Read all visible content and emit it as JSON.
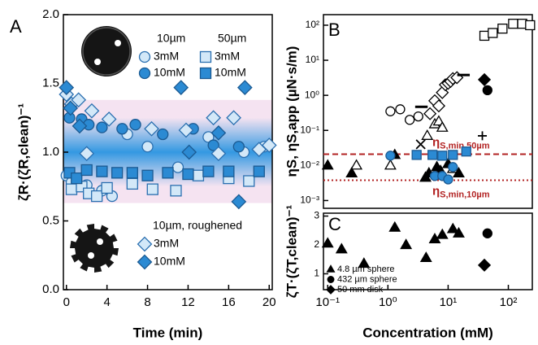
{
  "chart_data": [
    {
      "type": "scatter",
      "panel_label": "A",
      "xlabel": "Time (min)",
      "ylabel": "ζR·(ζR,clean)⁻¹",
      "xlim": [
        -0.3,
        20.3
      ],
      "xticks": [
        0,
        4,
        8,
        12,
        16,
        20
      ],
      "ylim": [
        0,
        2
      ],
      "yticks": [
        {
          "value": 0,
          "label": "0.0"
        },
        {
          "value": 0.5,
          "label": "0.5"
        },
        {
          "value": 1,
          "label": "1.0"
        },
        {
          "value": 1.5,
          "label": "1.5"
        },
        {
          "value": 2,
          "label": "2.0"
        }
      ],
      "bands": [
        {
          "range": [
            0.63,
            1.38
          ],
          "color": "#f5e3f1"
        },
        {
          "range": [
            0.75,
            1.25
          ],
          "color": "#1e90e0"
        }
      ],
      "series": [
        {
          "group": "10µm",
          "name": "3mM",
          "marker": "circle",
          "color": "#d3e8f8",
          "x": [
            0,
            0.5,
            2,
            3.5,
            4.5,
            6,
            8,
            11,
            14,
            17.5,
            19.5
          ],
          "values": [
            0.83,
            0.78,
            0.76,
            0.72,
            0.68,
            1.13,
            1.04,
            0.89,
            1.11,
            1.0,
            1.04
          ]
        },
        {
          "group": "10µm",
          "name": "10mM",
          "marker": "circle",
          "color": "#2b8ad3",
          "x": [
            0.3,
            1.5,
            2.2,
            3.5,
            5.5,
            6.8,
            9.5,
            12.5,
            14.5,
            17
          ],
          "values": [
            1.25,
            1.24,
            1.2,
            1.18,
            1.17,
            1.2,
            1.13,
            1.17,
            1.05,
            1.04
          ]
        },
        {
          "group": "50µm",
          "name": "3mM",
          "marker": "square",
          "color": "#d3e8f8",
          "x": [
            0.5,
            1.5,
            2.2,
            3,
            4,
            6.5,
            8.5,
            10.8,
            13,
            16,
            18
          ],
          "values": [
            0.73,
            0.75,
            0.7,
            0.68,
            0.74,
            0.77,
            0.73,
            0.72,
            0.83,
            0.81,
            0.79
          ]
        },
        {
          "group": "50µm",
          "name": "10mM",
          "marker": "square",
          "color": "#2b8ad3",
          "x": [
            0.3,
            1,
            2,
            3.5,
            5,
            6.5,
            8,
            10,
            12,
            14,
            16,
            19
          ],
          "values": [
            0.85,
            0.81,
            0.87,
            0.86,
            0.85,
            0.85,
            0.83,
            0.85,
            0.84,
            0.86,
            0.86,
            0.86
          ]
        },
        {
          "group": "10µm, roughened",
          "name": "3mM",
          "marker": "diamond",
          "color": "#d3e8f8",
          "x": [
            0,
            0.5,
            1.2,
            2,
            2.5,
            4.2,
            8.4,
            11.8,
            14.5,
            15,
            16.5,
            19,
            20
          ],
          "values": [
            1.42,
            1.35,
            1.38,
            0.99,
            1.3,
            1.24,
            1.17,
            1.16,
            1.25,
            0.99,
            1.25,
            1.02,
            1.05
          ]
        },
        {
          "group": "10µm, roughened",
          "name": "10mM",
          "marker": "diamond",
          "color": "#2b8ad3",
          "x": [
            0,
            0.4,
            1.3,
            11.3,
            12.1,
            15,
            17,
            17.6
          ],
          "values": [
            1.47,
            1.32,
            1.19,
            1.47,
            1.0,
            1.14,
            0.64,
            1.47
          ]
        }
      ]
    },
    {
      "type": "scatter",
      "panel_label": "B",
      "ylabel": "ηS, ηS,app (µN·s/m)",
      "xscale": "log",
      "yscale": "log",
      "xlim": [
        0.085,
        250
      ],
      "ylim": [
        0.0006,
        200
      ],
      "yticks": [
        {
          "value": 0.001,
          "label": "10⁻³"
        },
        {
          "value": 0.01,
          "label": "10⁻²"
        },
        {
          "value": 0.1,
          "label": "10⁻¹"
        },
        {
          "value": 1,
          "label": "10⁰"
        },
        {
          "value": 10,
          "label": "10¹"
        },
        {
          "value": 100,
          "label": "10²"
        }
      ],
      "hlines": [
        {
          "value": 0.021,
          "style": "dashed",
          "color": "#b22222",
          "symbol": "η",
          "sub": "S,min,50µm"
        },
        {
          "value": 0.0038,
          "style": "dotted",
          "color": "#b22222",
          "symbol": "η",
          "sub": "S,min,10µm"
        }
      ],
      "series": [
        {
          "marker": "square",
          "color": "#ffffff",
          "x": [
            40,
            55,
            80,
            120,
            170,
            230
          ],
          "values": [
            50,
            60,
            80,
            110,
            110,
            100
          ]
        },
        {
          "marker": "circle",
          "color": "#ffffff",
          "x": [
            1.1,
            1.6,
            2.3,
            3.2
          ],
          "values": [
            0.35,
            0.4,
            0.2,
            0.25
          ]
        },
        {
          "marker": "triangle",
          "color": "#ffffff",
          "x": [
            0.3,
            1.1,
            4.5,
            6,
            7,
            8,
            12
          ],
          "values": [
            0.01,
            0.01,
            0.07,
            0.15,
            0.18,
            0.12,
            0.008
          ]
        },
        {
          "marker": "triangle",
          "color": "#000000",
          "x": [
            0.1,
            0.25,
            1.3,
            4.2,
            4.8,
            6.5,
            7.5,
            10,
            15
          ],
          "values": [
            0.01,
            0.006,
            0.02,
            0.0045,
            0.006,
            0.009,
            0.007,
            0.011,
            0.006
          ]
        },
        {
          "marker": "circle",
          "color": "#2b8ad3",
          "x": [
            1.1,
            6,
            8,
            10,
            12
          ],
          "values": [
            0.019,
            0.005,
            0.005,
            0.004,
            0.009
          ]
        },
        {
          "marker": "square",
          "color": "#2b8ad3",
          "x": [
            3,
            5.5,
            8,
            12,
            20
          ],
          "values": [
            0.02,
            0.02,
            0.019,
            0.02,
            0.025
          ]
        },
        {
          "marker": "diamond",
          "color": "#ffffff",
          "x": [
            5,
            6,
            7,
            8,
            9,
            10,
            11,
            12,
            14
          ],
          "values": [
            0.3,
            0.7,
            0.5,
            1.2,
            2,
            2.2,
            2.5,
            3,
            3.2
          ]
        },
        {
          "marker": "diamond",
          "color": "#000000",
          "x": [
            40
          ],
          "values": [
            2.8
          ]
        },
        {
          "marker": "circle",
          "color": "#000000",
          "x": [
            45
          ],
          "values": [
            1.4
          ]
        },
        {
          "marker": "dash",
          "color": "#000000",
          "x": [
            3.6,
            18
          ],
          "values": [
            0.47,
            3.8
          ]
        },
        {
          "marker": "cross",
          "color": "#000000",
          "x": [
            3.5
          ],
          "values": [
            0.04
          ]
        },
        {
          "marker": "plus",
          "color": "#000000",
          "x": [
            37
          ],
          "values": [
            0.07
          ]
        }
      ]
    },
    {
      "type": "scatter",
      "panel_label": "C",
      "xlabel": "Concentration (mM)",
      "ylabel": "ζT·(ζT,clean)⁻¹",
      "xscale": "log",
      "xlim": [
        0.085,
        250
      ],
      "xticks": [
        {
          "value": 0.1,
          "label": "10⁻¹"
        },
        {
          "value": 1,
          "label": "10⁰"
        },
        {
          "value": 10,
          "label": "10¹"
        },
        {
          "value": 100,
          "label": "10²"
        }
      ],
      "ylim": [
        0.45,
        3.1
      ],
      "yticks": [
        1,
        2,
        3
      ],
      "series": [
        {
          "name": "4.8 µm sphere",
          "marker": "triangle",
          "color": "#000000",
          "x": [
            0.1,
            0.17,
            0.4,
            1.3,
            2,
            4.3,
            6,
            8,
            12,
            15
          ],
          "values": [
            2.05,
            1.85,
            1.35,
            2.6,
            2.0,
            1.55,
            2.2,
            2.35,
            2.55,
            2.4
          ]
        },
        {
          "name": "432 µm sphere",
          "marker": "circle",
          "color": "#000000",
          "x": [
            45
          ],
          "values": [
            2.4
          ]
        },
        {
          "name": "50 mm disk",
          "marker": "diamond",
          "color": "#000000",
          "x": [
            40
          ],
          "values": [
            1.3
          ]
        }
      ]
    }
  ]
}
